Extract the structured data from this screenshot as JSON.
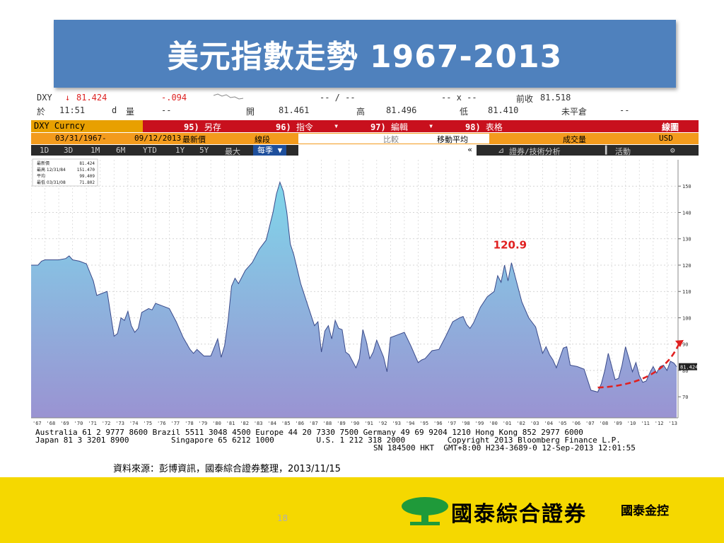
{
  "title": "美元指數走勢 1967-2013",
  "quote": {
    "ticker": "DXY",
    "last_prefix": "↓",
    "last": "81.424",
    "change": "-.094",
    "range": "-- / --",
    "x_label": "-- x --",
    "prev_close_label": "前收",
    "prev_close": "81.518",
    "time_label": "於",
    "time": "11:51",
    "d_label": "d",
    "volume_label": "量",
    "volume": "--",
    "open_label": "開",
    "open": "81.461",
    "high_label": "高",
    "high": "81.496",
    "low_label": "低",
    "low": "81.410",
    "unsettled_label": "未平倉",
    "unsettled": "--"
  },
  "toolbar": {
    "security": "DXY Curncy",
    "btn1_num": "95)",
    "btn1": "另存",
    "btn2_num": "96)",
    "btn2": "指令",
    "btn3_num": "97)",
    "btn3": "編輯",
    "btn4_num": "98)",
    "btn4": "表格",
    "chart_type": "線圖",
    "start_date": "03/31/1967",
    "dash": "-",
    "end_date": "09/12/2013",
    "price_field": "最新價",
    "segment": "線段",
    "compare": "比較",
    "moving_avg": "移動平均",
    "volume_field": "成交量",
    "currency": "USD",
    "periods": [
      "1D",
      "3D",
      "1M",
      "6M",
      "YTD",
      "1Y",
      "5Y",
      "最大"
    ],
    "frequency": "每季",
    "nav_arrow": "«",
    "tech_analysis": "證券/技術分析",
    "activity": "活動",
    "settings_glyph": "⚙"
  },
  "footer": {
    "line1": "Australia 61 2 9777 8600 Brazil 5511 3048 4500 Europe 44 20 7330 7500 Germany 49 69 9204 1210 Hong Kong 852 2977 6000",
    "line2": "Japan 81 3 3201 8900         Singapore 65 6212 1000         U.S. 1 212 318 2000         Copyright 2013 Bloomberg Finance L.P.",
    "line3": "SN 184500 HKT  GMT+8:00 H234-3689-0 12-Sep-2013 12:01:55"
  },
  "source": "資料來源：彭博資訊，國泰綜合證券整理，2013/11/15",
  "page_number": "18",
  "brand": "國泰綜合證券",
  "brand_group": "國泰金控",
  "colors": {
    "title_bg": "#4f81bd",
    "bb_red": "#c8101d",
    "bb_orange": "#f39b1d",
    "area_top": "#7fd6ea",
    "area_bottom": "#9a93d2",
    "annotation": "#e02020",
    "band": "#f5d800"
  },
  "chart_data": {
    "type": "area",
    "title": "",
    "xlabel": "",
    "ylabel": "",
    "ylim": [
      62,
      160
    ],
    "yticks": [
      70,
      80,
      90,
      100,
      110,
      120,
      130,
      140,
      150
    ],
    "xlim": [
      1967.0,
      2013.8
    ],
    "x_tick_labels": [
      "'67",
      "'68",
      "'69",
      "'70",
      "'71",
      "'72",
      "'73",
      "'74",
      "'75",
      "'76",
      "'77",
      "'78",
      "'79",
      "'80",
      "'81",
      "'82",
      "'83",
      "'84",
      "'85",
      "'86",
      "'87",
      "'88",
      "'89",
      "'90",
      "'91",
      "'92",
      "'93",
      "'94",
      "'95",
      "'96",
      "'97",
      "'98",
      "'99",
      "'00",
      "'01",
      "'02",
      "'03",
      "'04",
      "'05",
      "'06",
      "'07",
      "'08",
      "'09",
      "'10",
      "'11",
      "'12",
      "'13"
    ],
    "grid": true,
    "legend": {
      "position": "top-left",
      "entries": [
        {
          "label": "最新價",
          "value": "81.424"
        },
        {
          "label": "最高 12/31/84",
          "value": "151.470"
        },
        {
          "label": "平均",
          "value": "99.409"
        },
        {
          "label": "最低 03/31/08",
          "value": "71.802"
        }
      ]
    },
    "last_value_label": "81.424",
    "series": [
      {
        "x": [
          1967.0,
          1967.25,
          1967.5,
          1967.75,
          1968.0,
          1968.5,
          1969.0,
          1969.5,
          1969.75,
          1970.0,
          1970.5,
          1971.0,
          1971.5,
          1971.75,
          1972.0,
          1972.5,
          1973.0,
          1973.25,
          1973.5,
          1973.75,
          1974.0,
          1974.25,
          1974.5,
          1974.75,
          1975.0,
          1975.5,
          1975.75,
          1976.0,
          1976.5,
          1977.0,
          1977.5,
          1978.0,
          1978.5,
          1978.75,
          1979.0,
          1979.5,
          1980.0,
          1980.5,
          1980.75,
          1981.0,
          1981.25,
          1981.5,
          1981.75,
          1982.0,
          1982.5,
          1983.0,
          1983.5,
          1984.0,
          1984.5,
          1984.75,
          1985.0,
          1985.25,
          1985.5,
          1985.75,
          1986.0,
          1986.5,
          1987.0,
          1987.5,
          1987.75,
          1988.0,
          1988.25,
          1988.5,
          1988.75,
          1989.0,
          1989.25,
          1989.5,
          1989.75,
          1990.0,
          1990.5,
          1990.75,
          1991.0,
          1991.25,
          1991.5,
          1991.75,
          1992.0,
          1992.5,
          1992.75,
          1993.0,
          1993.5,
          1994.0,
          1994.5,
          1995.0,
          1995.25,
          1995.5,
          1996.0,
          1996.5,
          1997.0,
          1997.5,
          1998.0,
          1998.25,
          1998.5,
          1998.75,
          1999.0,
          1999.5,
          2000.0,
          2000.5,
          2000.75,
          2001.0,
          2001.25,
          2001.5,
          2001.75,
          2002.0,
          2002.5,
          2003.0,
          2003.5,
          2004.0,
          2004.25,
          2004.5,
          2004.75,
          2005.0,
          2005.5,
          2005.75,
          2006.0,
          2006.5,
          2007.0,
          2007.5,
          2008.0,
          2008.25,
          2008.5,
          2008.75,
          2009.0,
          2009.25,
          2009.5,
          2009.75,
          2010.0,
          2010.25,
          2010.5,
          2010.75,
          2011.0,
          2011.25,
          2011.5,
          2011.75,
          2012.0,
          2012.25,
          2012.5,
          2012.75,
          2013.0,
          2013.25,
          2013.5,
          2013.7
        ],
        "values": [
          120,
          120,
          120,
          121.5,
          122,
          122,
          122,
          122.5,
          123.5,
          122,
          121.5,
          120.5,
          114,
          108.5,
          109,
          110,
          93,
          94,
          100,
          99,
          102.5,
          97,
          94.5,
          96,
          102,
          103.5,
          103,
          105.5,
          104.5,
          103.5,
          98.5,
          92.5,
          88,
          86.5,
          88,
          85.5,
          85.5,
          92,
          85,
          89.5,
          99,
          112,
          115,
          113,
          118,
          121,
          126,
          129.5,
          140,
          147,
          151.5,
          148,
          140,
          128,
          124,
          113,
          105,
          97,
          98.5,
          87,
          95,
          97,
          92,
          99,
          96,
          95.5,
          87,
          86,
          81,
          84.5,
          95.5,
          91,
          84.5,
          87,
          91.5,
          85,
          79.5,
          92.5,
          93.5,
          94.5,
          89,
          83,
          84,
          84.5,
          87.5,
          88,
          93,
          98.5,
          100,
          100.5,
          97.5,
          96,
          98,
          104,
          108,
          110,
          116,
          113.5,
          120,
          114,
          120.9,
          116,
          106,
          100,
          96.5,
          86.5,
          89,
          86,
          84,
          81,
          88.5,
          89,
          82,
          81.5,
          80.5,
          72.5,
          71.8,
          75,
          80,
          86.5,
          81.5,
          76.5,
          77,
          82,
          89,
          84.5,
          79.5,
          83,
          78,
          75.5,
          76,
          79,
          81.5,
          79,
          81.5,
          82,
          80,
          83.5,
          82.8,
          81.424
        ]
      }
    ],
    "annotations": [
      {
        "text": "120.9",
        "x": 2001.75,
        "y": 120.9
      },
      {
        "text": "",
        "kind": "arrow",
        "x_from": 2008.0,
        "y_from": 73.5,
        "x_to": 2013.9,
        "y_to": 90.5
      }
    ]
  }
}
